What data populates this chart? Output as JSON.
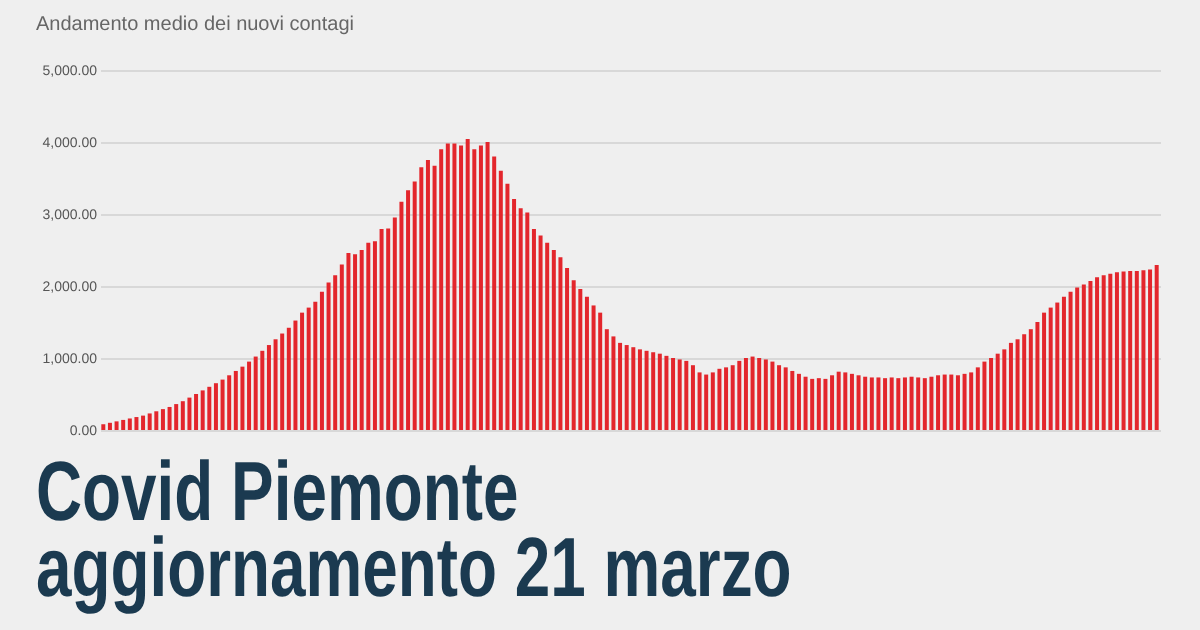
{
  "chart_data": {
    "type": "bar",
    "title": "Andamento medio dei nuovi contagi",
    "annotations": [
      "Covid Piemonte",
      "aggiornamento 21 marzo"
    ],
    "categories": [
      null,
      null,
      null,
      null,
      null,
      null,
      null,
      null,
      null,
      null,
      null,
      null,
      null,
      null,
      null,
      null,
      null,
      null,
      null,
      null,
      null,
      null,
      null,
      null,
      null,
      null,
      null,
      null,
      null,
      null,
      null,
      null,
      null,
      null,
      null,
      null,
      null,
      null,
      null,
      null,
      null,
      null,
      null,
      null,
      null,
      null,
      null,
      null,
      null,
      null,
      null,
      null,
      null,
      null,
      null,
      null,
      null,
      null,
      null,
      null,
      null,
      null,
      null,
      null,
      null,
      null,
      null,
      null,
      null,
      null,
      null,
      null,
      null,
      null,
      null,
      null,
      null,
      null,
      null,
      null,
      null,
      null,
      null,
      null,
      null,
      null,
      null,
      null,
      null,
      null,
      null,
      null,
      null,
      null,
      null,
      null,
      null,
      null,
      null,
      null,
      null,
      null,
      null,
      null,
      null,
      null,
      null,
      null,
      null,
      null,
      null,
      null,
      null,
      null,
      null,
      null,
      null,
      null,
      null,
      null,
      null,
      null,
      null,
      null,
      null,
      null,
      null,
      null,
      null,
      null,
      null,
      null,
      null,
      null,
      null,
      null,
      null,
      null,
      null,
      null,
      null,
      null,
      null,
      null,
      null,
      null,
      null,
      null,
      null,
      null,
      null,
      null,
      null,
      null,
      null,
      null,
      null,
      null,
      null,
      null
    ],
    "values": [
      80,
      100,
      120,
      140,
      160,
      180,
      200,
      230,
      260,
      290,
      320,
      360,
      400,
      450,
      500,
      550,
      600,
      650,
      700,
      760,
      820,
      880,
      950,
      1020,
      1100,
      1180,
      1260,
      1340,
      1420,
      1520,
      1630,
      1700,
      1780,
      1920,
      2050,
      2150,
      2300,
      2460,
      2440,
      2500,
      2600,
      2620,
      2790,
      2800,
      2950,
      3170,
      3330,
      3450,
      3650,
      3750,
      3670,
      3900,
      3980,
      3980,
      3950,
      4040,
      3900,
      3950,
      4000,
      3800,
      3600,
      3420,
      3210,
      3080,
      3020,
      2790,
      2700,
      2600,
      2500,
      2400,
      2250,
      2080,
      1960,
      1850,
      1730,
      1630,
      1400,
      1300,
      1210,
      1180,
      1150,
      1120,
      1100,
      1080,
      1060,
      1030,
      1000,
      980,
      960,
      900,
      800,
      770,
      800,
      850,
      870,
      900,
      960,
      1000,
      1020,
      1000,
      980,
      950,
      900,
      870,
      820,
      780,
      740,
      710,
      720,
      710,
      760,
      810,
      800,
      780,
      760,
      740,
      730,
      730,
      720,
      730,
      720,
      730,
      740,
      730,
      720,
      740,
      760,
      770,
      770,
      760,
      780,
      800,
      870,
      950,
      1000,
      1060,
      1120,
      1210,
      1260,
      1330,
      1400,
      1500,
      1630,
      1700,
      1770,
      1850,
      1920,
      1980,
      2020,
      2070,
      2120,
      2150,
      2170,
      2190,
      2200,
      2210,
      2210,
      2220,
      2230,
      2290
    ],
    "color": "#e3262c",
    "ylim": [
      0,
      5000
    ],
    "yticks": [
      {
        "value": 0,
        "label": "0.00"
      },
      {
        "value": 1000,
        "label": "1,000.00"
      },
      {
        "value": 2000,
        "label": "2,000.00"
      },
      {
        "value": 3000,
        "label": "3,000.00"
      },
      {
        "value": 4000,
        "label": "4,000.00"
      },
      {
        "value": 5000,
        "label": "5,000.00"
      }
    ],
    "grid": "y",
    "tick_labels": "y"
  }
}
